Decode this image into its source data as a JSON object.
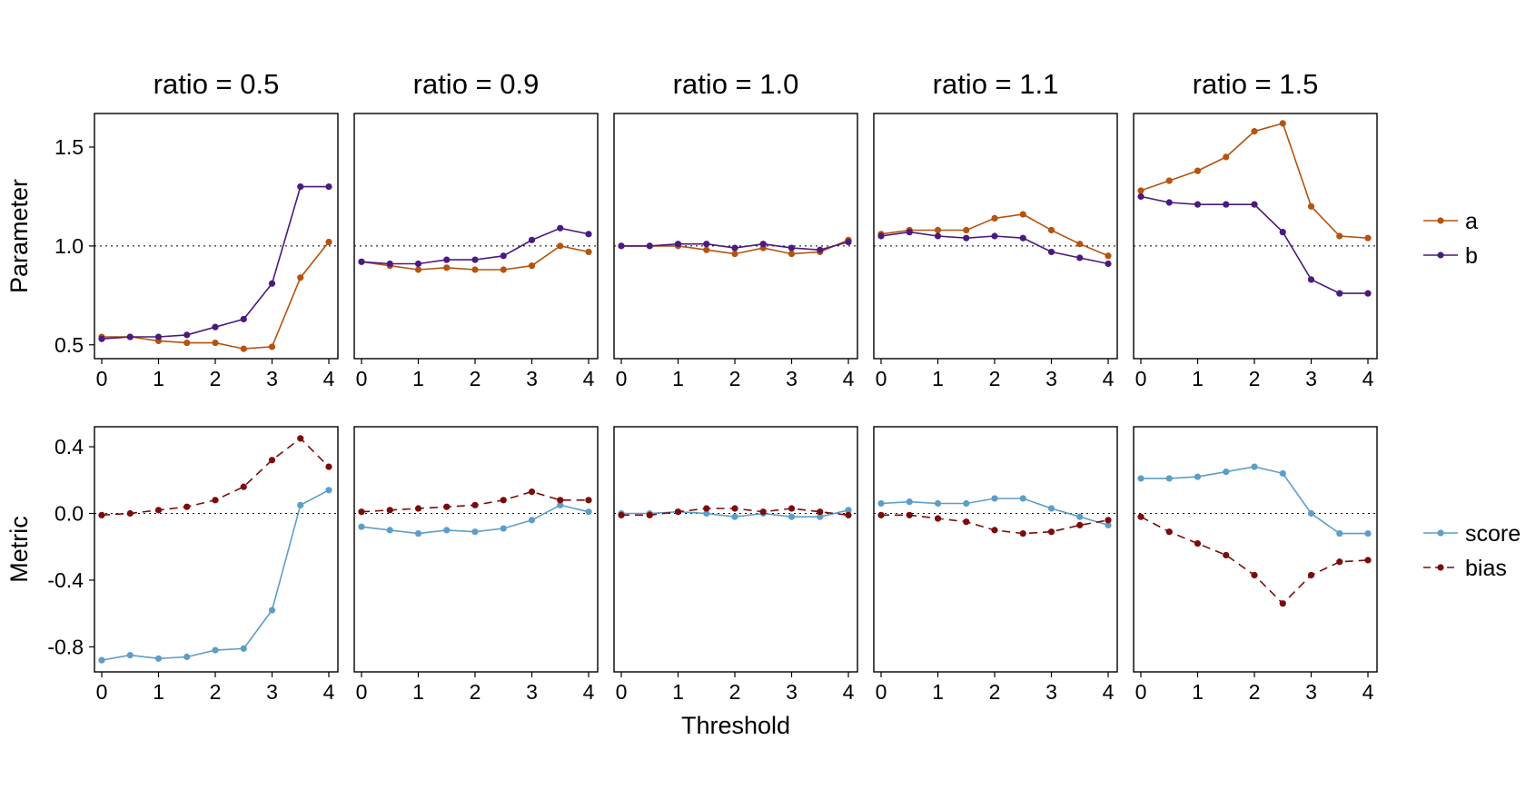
{
  "chart_data": {
    "type": "line",
    "x": [
      0,
      0.5,
      1,
      1.5,
      2,
      2.5,
      3,
      3.5,
      4
    ],
    "x_ticks": [
      "0",
      "1",
      "2",
      "3",
      "4"
    ],
    "xlabel": "Threshold",
    "facets": [
      {
        "label": "ratio = 0.5"
      },
      {
        "label": "ratio = 0.9"
      },
      {
        "label": "ratio = 1.0"
      },
      {
        "label": "ratio = 1.1"
      },
      {
        "label": "ratio = 1.5"
      }
    ],
    "rows": [
      {
        "ylabel": "Parameter",
        "ylim": [
          0.43,
          1.67
        ],
        "y_ticks": [
          "0.5",
          "1.0",
          "1.5"
        ],
        "y_tick_values": [
          0.5,
          1.0,
          1.5
        ],
        "reference_line": 1.0,
        "legend": [
          "a",
          "b"
        ],
        "series": [
          {
            "name": "a",
            "color": "#b5530f",
            "dashed": false,
            "values": [
              [
                0.54,
                0.54,
                0.52,
                0.51,
                0.51,
                0.48,
                0.49,
                0.84,
                1.02
              ],
              [
                0.92,
                0.9,
                0.88,
                0.89,
                0.88,
                0.88,
                0.9,
                1.0,
                0.97
              ],
              [
                1.0,
                1.0,
                1.0,
                0.98,
                0.96,
                0.99,
                0.96,
                0.97,
                1.03
              ],
              [
                1.06,
                1.08,
                1.08,
                1.08,
                1.14,
                1.16,
                1.08,
                1.01,
                0.95
              ],
              [
                1.28,
                1.33,
                1.38,
                1.45,
                1.58,
                1.62,
                1.2,
                1.05,
                1.04
              ]
            ]
          },
          {
            "name": "b",
            "color": "#4a1a7e",
            "dashed": false,
            "values": [
              [
                0.53,
                0.54,
                0.54,
                0.55,
                0.59,
                0.63,
                0.81,
                1.3,
                1.3
              ],
              [
                0.92,
                0.91,
                0.91,
                0.93,
                0.93,
                0.95,
                1.03,
                1.09,
                1.06
              ],
              [
                1.0,
                1.0,
                1.01,
                1.01,
                0.99,
                1.01,
                0.99,
                0.98,
                1.02
              ],
              [
                1.05,
                1.07,
                1.05,
                1.04,
                1.05,
                1.04,
                0.97,
                0.94,
                0.91
              ],
              [
                1.25,
                1.22,
                1.21,
                1.21,
                1.21,
                1.07,
                0.83,
                0.76,
                0.76
              ]
            ]
          }
        ]
      },
      {
        "ylabel": "Metric",
        "ylim": [
          -0.95,
          0.52
        ],
        "y_ticks": [
          "0.4",
          "0.0",
          "-0.4",
          "-0.8"
        ],
        "y_tick_values": [
          0.4,
          0.0,
          -0.4,
          -0.8
        ],
        "reference_line": 0.0,
        "legend": [
          "score",
          "bias"
        ],
        "series": [
          {
            "name": "score",
            "color": "#5d9ec8",
            "dashed": false,
            "values": [
              [
                -0.88,
                -0.85,
                -0.87,
                -0.86,
                -0.82,
                -0.81,
                -0.58,
                0.05,
                0.14
              ],
              [
                -0.08,
                -0.1,
                -0.12,
                -0.1,
                -0.11,
                -0.09,
                -0.04,
                0.05,
                0.01
              ],
              [
                0.0,
                0.0,
                0.01,
                0.0,
                -0.02,
                0.0,
                -0.02,
                -0.02,
                0.02
              ],
              [
                0.06,
                0.07,
                0.06,
                0.06,
                0.09,
                0.09,
                0.03,
                -0.02,
                -0.07
              ],
              [
                0.21,
                0.21,
                0.22,
                0.25,
                0.28,
                0.24,
                0.0,
                -0.12,
                -0.12
              ]
            ]
          },
          {
            "name": "bias",
            "color": "#7b0c0c",
            "dashed": true,
            "values": [
              [
                -0.01,
                0.0,
                0.02,
                0.04,
                0.08,
                0.16,
                0.32,
                0.45,
                0.28
              ],
              [
                0.01,
                0.02,
                0.03,
                0.04,
                0.05,
                0.08,
                0.13,
                0.08,
                0.08
              ],
              [
                -0.01,
                -0.01,
                0.01,
                0.03,
                0.03,
                0.01,
                0.03,
                0.01,
                -0.01
              ],
              [
                -0.01,
                -0.01,
                -0.03,
                -0.05,
                -0.1,
                -0.12,
                -0.11,
                -0.07,
                -0.04
              ],
              [
                -0.02,
                -0.11,
                -0.18,
                -0.25,
                -0.37,
                -0.54,
                -0.37,
                -0.29,
                -0.28
              ]
            ]
          }
        ]
      }
    ]
  }
}
